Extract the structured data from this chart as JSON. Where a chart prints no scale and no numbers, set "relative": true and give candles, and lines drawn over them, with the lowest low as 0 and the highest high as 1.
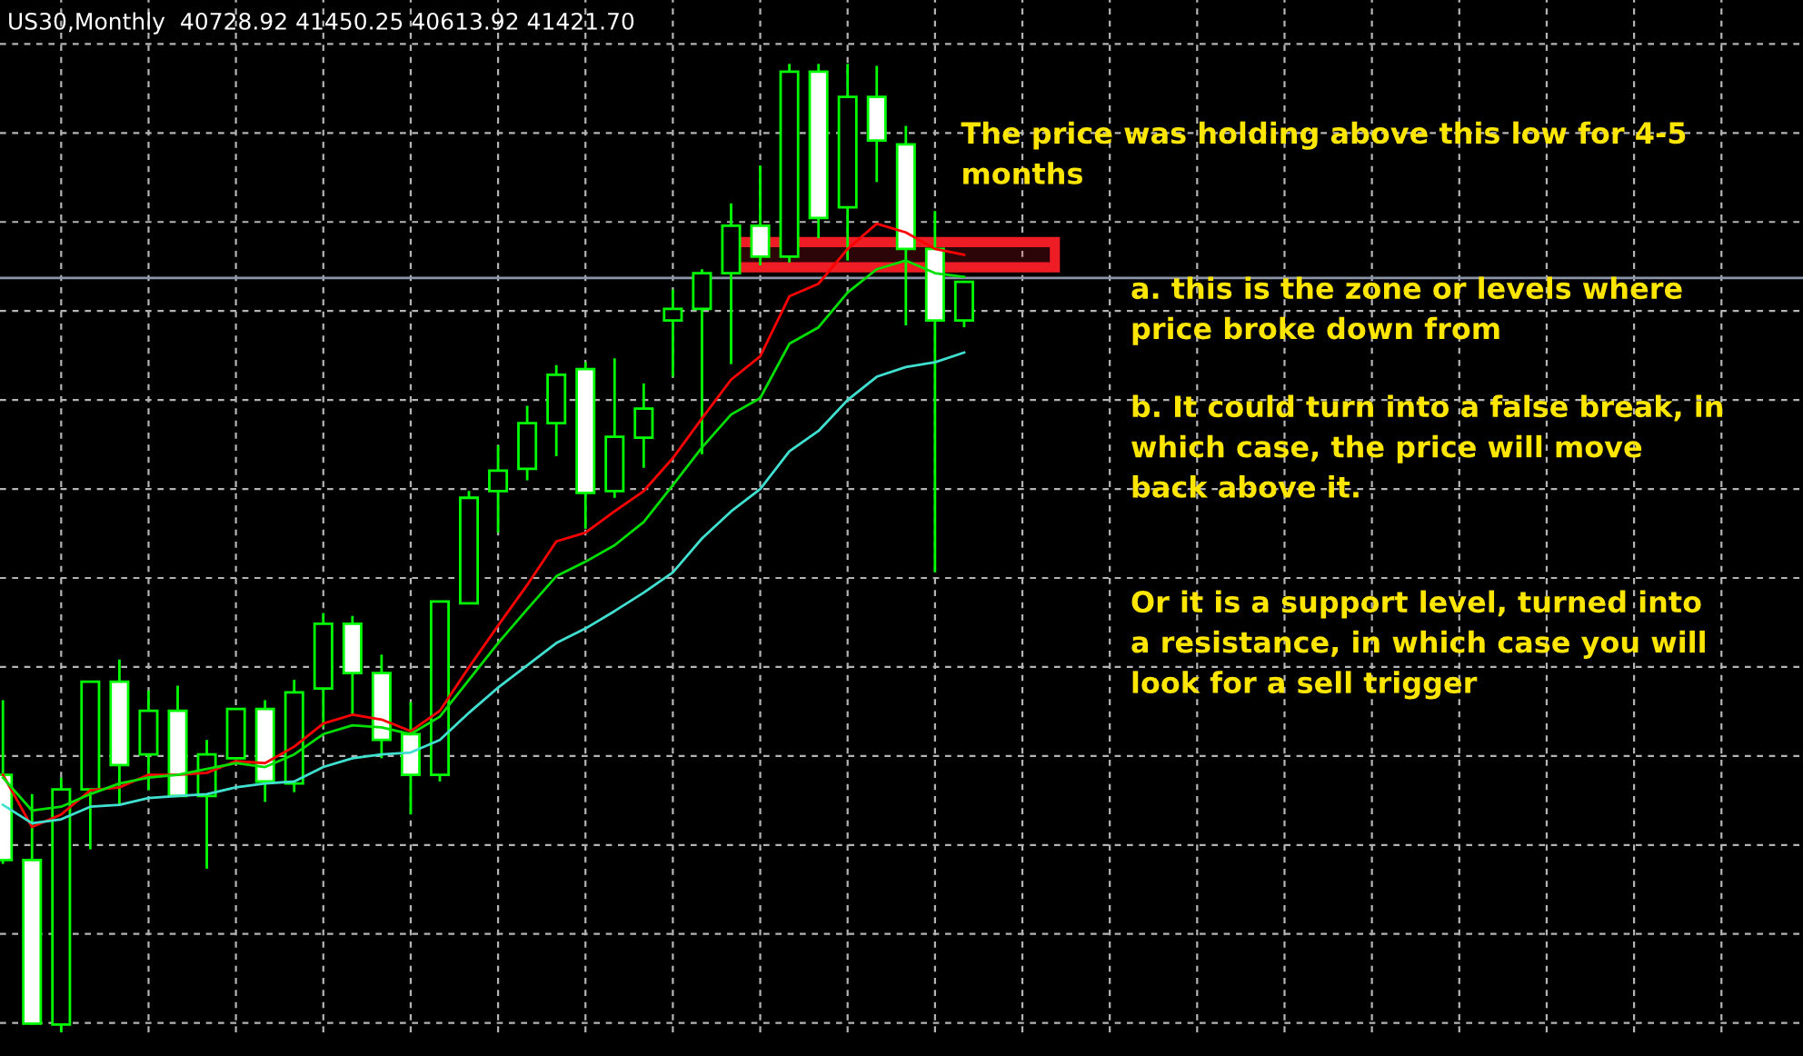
{
  "chart_data": {
    "type": "candlestick",
    "relative": true,
    "title": "US30,Monthly  40728.92 41450.25 40613.92 41421.70",
    "categories": [
      null,
      null,
      null,
      null,
      null,
      null,
      null,
      null,
      null,
      null,
      null,
      null,
      null,
      null,
      null,
      null,
      null,
      null,
      null,
      null,
      null,
      null,
      null,
      null,
      null,
      null,
      null,
      null,
      null,
      null,
      null,
      null,
      null,
      null
    ],
    "color": "#00ff00",
    "ohlc": [
      [
        0.266,
        0.343,
        0.174,
        0.178
      ],
      [
        0.178,
        0.246,
        0.008,
        0.009
      ],
      [
        0.008,
        0.263,
        0,
        0.251
      ],
      [
        0.251,
        0.362,
        0.189,
        0.362
      ],
      [
        0.362,
        0.385,
        0.235,
        0.276
      ],
      [
        0.287,
        0.353,
        0.25,
        0.332
      ],
      [
        0.332,
        0.358,
        0.244,
        0.244
      ],
      [
        0.244,
        0.302,
        0.169,
        0.287
      ],
      [
        0.283,
        0.334,
        0.283,
        0.334
      ],
      [
        0.334,
        0.343,
        0.238,
        0.259
      ],
      [
        0.257,
        0.364,
        0.248,
        0.351
      ],
      [
        0.355,
        0.433,
        0.315,
        0.422
      ],
      [
        0.422,
        0.43,
        0.328,
        0.371
      ],
      [
        0.371,
        0.39,
        0.283,
        0.302
      ],
      [
        0.308,
        0.341,
        0.225,
        0.266
      ],
      [
        0.266,
        0.445,
        0.259,
        0.445
      ],
      [
        0.443,
        0.559,
        0.443,
        0.552
      ],
      [
        0.559,
        0.606,
        0.516,
        0.58
      ],
      [
        0.582,
        0.647,
        0.57,
        0.629
      ],
      [
        0.629,
        0.689,
        0.595,
        0.679
      ],
      [
        0.685,
        0.692,
        0.52,
        0.557
      ],
      [
        0.559,
        0.696,
        0.552,
        0.615
      ],
      [
        0.614,
        0.67,
        0.583,
        0.644
      ],
      [
        0.735,
        0.767,
        0.677,
        0.747
      ],
      [
        0.747,
        0.788,
        0.597,
        0.784
      ],
      [
        0.784,
        0.856,
        0.69,
        0.833
      ],
      [
        0.833,
        0.895,
        0.792,
        0.801
      ],
      [
        0.801,
        1.0,
        0.795,
        0.992
      ],
      [
        0.992,
        1.0,
        0.82,
        0.841
      ],
      [
        0.852,
        1.0,
        0.797,
        0.966
      ],
      [
        0.966,
        0.998,
        0.878,
        0.921
      ],
      [
        0.917,
        0.936,
        0.73,
        0.809
      ],
      [
        0.809,
        0.848,
        0.475,
        0.735
      ],
      [
        0.735,
        0.775,
        0.728,
        0.775
      ]
    ],
    "series": [
      {
        "type": "line",
        "color": "#ff0000",
        "values": [
          0.266,
          0.212,
          0.225,
          0.25,
          0.253,
          0.266,
          0.266,
          0.268,
          0.28,
          0.278,
          0.295,
          0.319,
          0.328,
          0.323,
          0.311,
          0.332,
          0.377,
          0.42,
          0.462,
          0.507,
          0.516,
          0.538,
          0.559,
          0.593,
          0.634,
          0.674,
          0.698,
          0.76,
          0.773,
          0.809,
          0.835,
          0.826,
          0.809,
          0.803
        ]
      },
      {
        "type": "line",
        "color": "#00e000",
        "values": [
          0.263,
          0.229,
          0.233,
          0.246,
          0.257,
          0.263,
          0.266,
          0.272,
          0.278,
          0.274,
          0.287,
          0.308,
          0.317,
          0.315,
          0.308,
          0.326,
          0.364,
          0.402,
          0.437,
          0.471,
          0.486,
          0.503,
          0.527,
          0.565,
          0.604,
          0.638,
          0.655,
          0.711,
          0.728,
          0.764,
          0.788,
          0.797,
          0.784,
          0.78
        ]
      },
      {
        "type": "line",
        "color": "#40e0d0",
        "values": [
          0.235,
          0.216,
          0.22,
          0.233,
          0.235,
          0.242,
          0.244,
          0.246,
          0.253,
          0.257,
          0.259,
          0.274,
          0.283,
          0.287,
          0.289,
          0.302,
          0.33,
          0.356,
          0.379,
          0.402,
          0.417,
          0.435,
          0.454,
          0.475,
          0.51,
          0.538,
          0.561,
          0.6,
          0.621,
          0.653,
          0.677,
          0.687,
          0.692,
          0.702
        ]
      }
    ],
    "ref_lines": [
      {
        "axis": "y",
        "value": 0.779,
        "color": "#8c96a8"
      }
    ],
    "bands": [
      {
        "axis": "y",
        "from": 0.79,
        "to": 0.816,
        "color": "#ee1c25"
      }
    ],
    "grid": true,
    "annotations": [
      "The price was holding above this low for 4-5\nmonths",
      "a. this is the zone or levels where\nprice broke down from",
      "b. It could turn into a false break, in\nwhich case, the price will move\nback above it.",
      "Or it is a support level, turned into\na resistance, in which case you will\nlook for a sell trigger"
    ]
  }
}
